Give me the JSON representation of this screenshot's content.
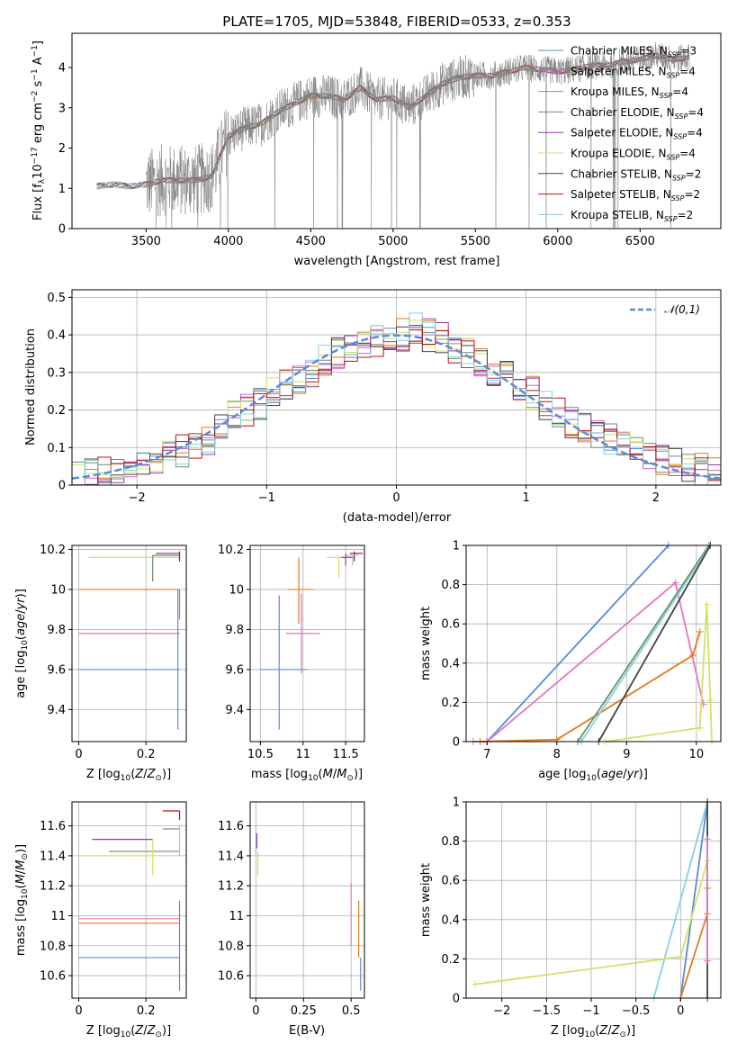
{
  "figure": {
    "title": "PLATE=1705, MJD=53848, FIBERID=0533, z=0.353",
    "model_colors": {
      "Chabrier MILES": "#5b8ad8",
      "Salpeter MILES": "#cc66cc",
      "Kroupa MILES": "#e07b20",
      "Chabrier ELODIE": "#6b8e6b",
      "Salpeter ELODIE": "#9933aa",
      "Kroupa ELODIE": "#d4e066",
      "Chabrier STELIB": "#444444",
      "Salpeter STELIB": "#bb1111",
      "Kroupa STELIB": "#88d0e0"
    }
  },
  "chart_data": [
    {
      "id": "spectrum",
      "type": "line",
      "xlabel": "wavelength [Angstrom, rest frame]",
      "ylabel": "Flux [f_λ 10^-17 erg cm^-2 s^-1 A^-1]",
      "xlim": [
        3050,
        6990
      ],
      "ylim": [
        0,
        4.85
      ],
      "xticks": [
        3500,
        4000,
        4500,
        5000,
        5500,
        6000,
        6500
      ],
      "yticks": [
        0,
        1,
        2,
        3,
        4
      ],
      "grid": false,
      "legend_position": "upper-right",
      "legend": [
        {
          "label": "Chabrier MILES, N",
          "sub": "SSP",
          "tail": "=3",
          "color": "#5b8ad8"
        },
        {
          "label": "Salpeter MILES, N",
          "sub": "SSP",
          "tail": "=4",
          "color": "#cc66cc"
        },
        {
          "label": "Kroupa MILES, N",
          "sub": "SSP",
          "tail": "=4",
          "color": "#e07b20"
        },
        {
          "label": "Chabrier ELODIE, N",
          "sub": "SSP",
          "tail": "=4",
          "color": "#6b8e6b"
        },
        {
          "label": "Salpeter ELODIE, N",
          "sub": "SSP",
          "tail": "=4",
          "color": "#9933aa"
        },
        {
          "label": "Kroupa ELODIE, N",
          "sub": "SSP",
          "tail": "=4",
          "color": "#d4e066"
        },
        {
          "label": "Chabrier STELIB, N",
          "sub": "SSP",
          "tail": "=2",
          "color": "#444444"
        },
        {
          "label": "Salpeter STELIB, N",
          "sub": "SSP",
          "tail": "=2",
          "color": "#bb1111"
        },
        {
          "label": "Kroupa STELIB, N",
          "sub": "SSP",
          "tail": "=2",
          "color": "#88d0e0"
        }
      ],
      "data_color": "#808080",
      "continuum_knots": {
        "x": [
          3200,
          3300,
          3400,
          3500,
          3600,
          3700,
          3800,
          3900,
          4000,
          4100,
          4200,
          4300,
          4400,
          4500,
          4600,
          4700,
          4800,
          4900,
          5000,
          5100,
          5200,
          5300,
          5400,
          5500,
          5600,
          5700,
          5800,
          5900,
          6000,
          6100,
          6200,
          6300,
          6400,
          6500,
          6600,
          6700,
          6800
        ],
        "y": [
          1.05,
          1.1,
          1.05,
          1.1,
          1.2,
          1.2,
          1.2,
          1.3,
          2.3,
          2.5,
          2.6,
          2.9,
          3.1,
          3.3,
          3.3,
          3.2,
          3.5,
          3.2,
          3.25,
          3.0,
          3.3,
          3.6,
          3.75,
          3.8,
          3.8,
          3.9,
          4.0,
          3.95,
          3.9,
          3.95,
          4.05,
          4.05,
          4.15,
          4.2,
          4.3,
          4.2,
          4.25
        ]
      }
    },
    {
      "id": "residual-histogram",
      "type": "bar",
      "xlabel": "(data-model)/error",
      "ylabel": "Normed distribution",
      "xlim": [
        -2.5,
        2.5
      ],
      "ylim": [
        0,
        0.52
      ],
      "xticks": [
        -2,
        -1,
        0,
        1,
        2
      ],
      "yticks": [
        0.0,
        0.1,
        0.2,
        0.3,
        0.4,
        0.5
      ],
      "grid": true,
      "legend_position": "upper-right",
      "legend_label": "𝒩(0,1)",
      "gauss_color": "#5b8ad8",
      "bin_edges_range": [
        -2.5,
        2.5
      ],
      "bin_count": 50,
      "base_hist": [
        0.02,
        0.025,
        0.03,
        0.04,
        0.05,
        0.06,
        0.07,
        0.08,
        0.09,
        0.1,
        0.12,
        0.15,
        0.18,
        0.2,
        0.22,
        0.25,
        0.27,
        0.28,
        0.3,
        0.33,
        0.35,
        0.36,
        0.37,
        0.38,
        0.39,
        0.4,
        0.42,
        0.4,
        0.39,
        0.37,
        0.35,
        0.33,
        0.31,
        0.29,
        0.27,
        0.25,
        0.21,
        0.19,
        0.17,
        0.15,
        0.14,
        0.12,
        0.1,
        0.09,
        0.08,
        0.07,
        0.06,
        0.05,
        0.04,
        0.03
      ]
    },
    {
      "id": "age-vs-Z",
      "type": "scatter",
      "xlabel": "Z [log10(Z/Z⊙)]",
      "ylabel": "age [log10(age/yr)]",
      "xlim": [
        -0.02,
        0.32
      ],
      "ylim": [
        9.24,
        10.22
      ],
      "xticks": [
        0.0,
        0.2
      ],
      "yticks": [
        9.4,
        9.6,
        9.8,
        10.0,
        10.2
      ],
      "grid": true,
      "hlines": [
        {
          "x0": 0.0,
          "x1": 0.3,
          "y": 9.6,
          "color": "#5b8ad8"
        },
        {
          "x0": 0.0,
          "x1": 0.3,
          "y": 9.78,
          "color": "#e377c2"
        },
        {
          "x0": 0.0,
          "x1": 0.3,
          "y": 10.0,
          "color": "#e07b20"
        },
        {
          "x0": 0.03,
          "x1": 0.3,
          "y": 10.16,
          "color": "#d4e066"
        },
        {
          "x0": 0.22,
          "x1": 0.3,
          "y": 10.17,
          "color": "#6b8e6b"
        },
        {
          "x0": 0.23,
          "x1": 0.3,
          "y": 10.18,
          "color": "#9933aa"
        }
      ],
      "vlines": [
        {
          "x": 0.295,
          "y0": 9.3,
          "y1": 10.0,
          "color": "#5b8ad8"
        },
        {
          "x": 0.3,
          "y0": 9.85,
          "y1": 10.0,
          "color": "#e07b20"
        },
        {
          "x": 0.22,
          "y0": 10.04,
          "y1": 10.17,
          "color": "#6b8e6b"
        },
        {
          "x": 0.3,
          "y0": 10.14,
          "y1": 10.19,
          "color": "#bb1111"
        }
      ]
    },
    {
      "id": "age-vs-mass",
      "type": "scatter",
      "xlabel": "mass [log10(M/M⊙)]",
      "ylabel": "",
      "xlim": [
        10.38,
        11.72
      ],
      "ylim": [
        9.24,
        10.22
      ],
      "xticks": [
        10.5,
        11.0,
        11.5
      ],
      "yticks": [
        9.4,
        9.6,
        9.8,
        10.0,
        10.2
      ],
      "grid": true,
      "crosses": [
        {
          "x": 10.72,
          "y": 9.6,
          "xerr": [
            10.5,
            11.05
          ],
          "yerr": [
            9.3,
            9.97
          ],
          "color": "#5b8ad8"
        },
        {
          "x": 10.98,
          "y": 9.78,
          "xerr": [
            10.8,
            11.2
          ],
          "yerr": [
            9.58,
            9.98
          ],
          "color": "#e377c2"
        },
        {
          "x": 10.95,
          "y": 10.0,
          "xerr": [
            10.82,
            11.12
          ],
          "yerr": [
            9.83,
            10.16
          ],
          "color": "#e07b20"
        },
        {
          "x": 11.42,
          "y": 10.16,
          "xerr": [
            11.28,
            11.55
          ],
          "yerr": [
            10.06,
            10.17
          ],
          "color": "#d4e066"
        },
        {
          "x": 11.5,
          "y": 10.16,
          "xerr": [
            11.45,
            11.6
          ],
          "yerr": [
            10.12,
            10.18
          ],
          "color": "#9933aa"
        },
        {
          "x": 11.6,
          "y": 10.18,
          "xerr": [
            11.55,
            11.7
          ],
          "yerr": [
            10.14,
            10.19
          ],
          "color": "#bb1111"
        },
        {
          "x": 11.58,
          "y": 10.17,
          "xerr": [
            11.5,
            11.65
          ],
          "yerr": [
            10.12,
            10.18
          ],
          "color": "#88d0e0"
        }
      ]
    },
    {
      "id": "massweight-vs-age",
      "type": "line",
      "xlabel": "age [log10(age/yr)]",
      "ylabel": "mass weight",
      "xlim": [
        6.7,
        10.35
      ],
      "ylim": [
        0,
        1.0
      ],
      "xticks": [
        7,
        8,
        9,
        10
      ],
      "yticks": [
        0.0,
        0.2,
        0.4,
        0.6,
        0.8,
        1.0
      ],
      "grid": true,
      "series": [
        {
          "x": [
            7.0,
            9.6
          ],
          "y": [
            0.0,
            1.0
          ],
          "color": "#5b8ad8"
        },
        {
          "x": [
            6.8,
            7.0,
            9.7,
            10.1
          ],
          "y": [
            0.0,
            0.0,
            0.81,
            0.19
          ],
          "color": "#e377c2"
        },
        {
          "x": [
            6.9,
            8.0,
            9.95,
            10.05
          ],
          "y": [
            0.0,
            0.01,
            0.44,
            0.56
          ],
          "color": "#e07b20"
        },
        {
          "x": [
            8.3,
            10.18
          ],
          "y": [
            0.0,
            1.0
          ],
          "color": "#6b8e6b"
        },
        {
          "x": [
            8.35,
            10.2
          ],
          "y": [
            0.0,
            1.0
          ],
          "color": "#88d0e0"
        },
        {
          "x": [
            8.6,
            10.2
          ],
          "y": [
            0.0,
            1.0
          ],
          "color": "#444444"
        },
        {
          "x": [
            8.7,
            10.05,
            10.15,
            10.2,
            10.22
          ],
          "y": [
            0.0,
            0.07,
            0.7,
            0.21,
            0.0
          ],
          "color": "#d4e066"
        }
      ]
    },
    {
      "id": "mass-vs-Z",
      "type": "scatter",
      "xlabel": "Z [log10(Z/Z⊙)]",
      "ylabel": "mass [log10(M/M⊙)]",
      "xlim": [
        -0.02,
        0.32
      ],
      "ylim": [
        10.45,
        11.76
      ],
      "xticks": [
        0.0,
        0.2
      ],
      "yticks": [
        10.6,
        10.8,
        11.0,
        11.2,
        11.4,
        11.6
      ],
      "grid": true,
      "hlines": [
        {
          "x0": 0.0,
          "x1": 0.3,
          "y": 10.72,
          "color": "#5b8ad8"
        },
        {
          "x0": 0.0,
          "x1": 0.3,
          "y": 10.95,
          "color": "#e07b20"
        },
        {
          "x0": 0.0,
          "x1": 0.3,
          "y": 10.98,
          "color": "#e377c2"
        },
        {
          "x0": 0.0,
          "x1": 0.22,
          "y": 11.4,
          "color": "#d4e066"
        },
        {
          "x0": 0.09,
          "x1": 0.3,
          "y": 11.43,
          "color": "#6b8e6b"
        },
        {
          "x0": 0.04,
          "x1": 0.22,
          "y": 11.51,
          "color": "#9933aa"
        },
        {
          "x0": 0.25,
          "x1": 0.3,
          "y": 11.58,
          "color": "#6b8e6b"
        },
        {
          "x0": 0.25,
          "x1": 0.3,
          "y": 11.7,
          "color": "#bb1111"
        }
      ],
      "vlines": [
        {
          "x": 0.3,
          "y0": 10.5,
          "y1": 11.1,
          "color": "#5b8ad8"
        },
        {
          "x": 0.22,
          "y0": 11.27,
          "y1": 11.51,
          "color": "#d4e066"
        },
        {
          "x": 0.3,
          "y0": 11.64,
          "y1": 11.7,
          "color": "#bb1111"
        },
        {
          "x": 0.3,
          "y0": 11.4,
          "y1": 11.6,
          "color": "#88d0e0"
        }
      ]
    },
    {
      "id": "mass-vs-EBV",
      "type": "scatter",
      "xlabel": "E(B-V)",
      "ylabel": "",
      "xlim": [
        -0.03,
        0.57
      ],
      "ylim": [
        10.45,
        11.76
      ],
      "xticks": [
        0.0,
        0.25,
        0.5
      ],
      "yticks": [
        10.6,
        10.8,
        11.0,
        11.2,
        11.4,
        11.6
      ],
      "grid": true,
      "vlines": [
        {
          "x": 0.0,
          "y0": 11.4,
          "y1": 11.6,
          "color": "#88d0e0"
        },
        {
          "x": 0.005,
          "y0": 11.45,
          "y1": 11.55,
          "color": "#9933aa"
        },
        {
          "x": 0.01,
          "y0": 11.27,
          "y1": 11.43,
          "color": "#d4e066"
        },
        {
          "x": 0.5,
          "y0": 10.8,
          "y1": 11.22,
          "color": "#e377c2"
        },
        {
          "x": 0.54,
          "y0": 10.72,
          "y1": 11.1,
          "color": "#e07b20"
        },
        {
          "x": 0.55,
          "y0": 10.5,
          "y1": 10.72,
          "color": "#5b8ad8"
        }
      ]
    },
    {
      "id": "massweight-vs-Z",
      "type": "line",
      "xlabel": "Z [log10(Z/Z⊙)]",
      "ylabel": "mass weight",
      "xlim": [
        -2.4,
        0.45
      ],
      "ylim": [
        0,
        1.0
      ],
      "xticks": [
        -2.0,
        -1.5,
        -1.0,
        -0.5,
        0.0
      ],
      "yticks": [
        0.0,
        0.2,
        0.4,
        0.6,
        0.8,
        1.0
      ],
      "grid": true,
      "series": [
        {
          "x": [
            0.0,
            0.3
          ],
          "y": [
            0.0,
            1.0
          ],
          "color": "#5b8ad8"
        },
        {
          "x": [
            -0.3,
            0.3
          ],
          "y": [
            0.0,
            1.0
          ],
          "color": "#88d0e0"
        },
        {
          "x": [
            0.0,
            0.3,
            0.3
          ],
          "y": [
            0.0,
            0.43,
            0.56
          ],
          "color": "#e07b20"
        },
        {
          "x": [
            -2.3,
            0.0,
            0.3,
            0.3
          ],
          "y": [
            0.07,
            0.21,
            0.7,
            0.0
          ],
          "color": "#d4e066"
        },
        {
          "x": [
            0.3,
            0.3
          ],
          "y": [
            0.0,
            1.0
          ],
          "color": "#444444"
        },
        {
          "x": [
            0.3,
            0.3
          ],
          "y": [
            0.19,
            0.81
          ],
          "color": "#e377c2"
        }
      ]
    }
  ]
}
